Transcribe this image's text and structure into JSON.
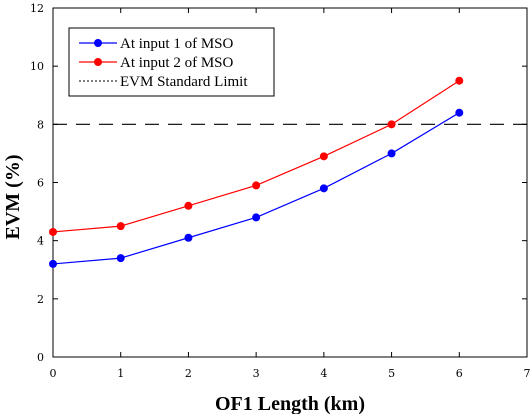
{
  "chart_data": {
    "type": "line",
    "title": "",
    "xlabel": "OF1 Length (km)",
    "ylabel": "EVM (%)",
    "xlim": [
      0,
      7
    ],
    "ylim": [
      0,
      12
    ],
    "xticks": [
      "0",
      "1",
      "2",
      "3",
      "4",
      "5",
      "6",
      "7"
    ],
    "yticks": [
      "0",
      "2",
      "4",
      "6",
      "8",
      "10",
      "12"
    ],
    "x": [
      0,
      1,
      2,
      3,
      4,
      5,
      6
    ],
    "series": [
      {
        "name": "At input 1 of MSO",
        "color": "#0000ff",
        "values": [
          3.2,
          3.4,
          4.1,
          4.8,
          5.8,
          7.0,
          8.4
        ]
      },
      {
        "name": "At input 2 of MSO",
        "color": "#ff0000",
        "values": [
          4.3,
          4.5,
          5.2,
          5.9,
          6.9,
          8.0,
          9.5
        ]
      }
    ],
    "reference_line": {
      "name": "EVM Standard Limit",
      "y": 8,
      "style": "dashed",
      "color": "#000000"
    },
    "legend_position": "top-left",
    "grid": false
  }
}
